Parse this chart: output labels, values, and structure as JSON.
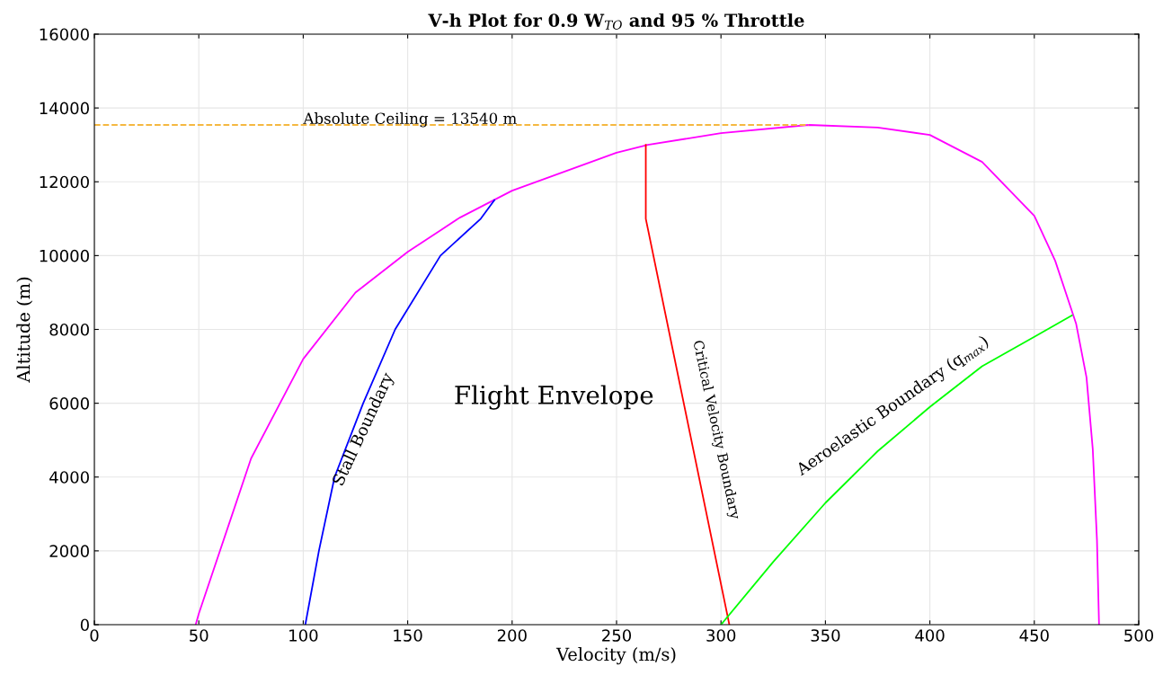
{
  "chart_data": {
    "type": "line",
    "title": "V-h Plot for 0.9 W$_{TO}$ and 95 % Throttle",
    "xlabel": "Velocity (m/s)",
    "ylabel": "Altitude (m)",
    "xlim": [
      0,
      500
    ],
    "xticks": [
      0,
      50,
      100,
      150,
      200,
      250,
      300,
      350,
      400,
      450,
      500
    ],
    "ylim": [
      0,
      16000
    ],
    "yticks": [
      0,
      2000,
      4000,
      6000,
      8000,
      10000,
      12000,
      14000,
      16000
    ],
    "grid": true,
    "line_style": "solid",
    "series": [
      {
        "color": "#ff00ff",
        "x": [
          48.5,
          50,
          75,
          100,
          125,
          150,
          175,
          200,
          250,
          265,
          300,
          342,
          375,
          400,
          425,
          450,
          460,
          470,
          475,
          478,
          480,
          481
        ],
        "values": [
          0,
          300,
          4500,
          7200,
          9000,
          10100,
          11030,
          11760,
          12790,
          13000,
          13320,
          13540,
          13470,
          13270,
          12540,
          11080,
          9860,
          8160,
          6700,
          4750,
          2300,
          0
        ]
      },
      {
        "color": "#0000ff",
        "x": [
          101,
          107.5,
          115,
          128.7,
          144,
          165.7,
          185,
          191.5
        ],
        "values": [
          0,
          2000,
          4000,
          6000,
          8000,
          10000,
          11000,
          11500
        ]
      },
      {
        "color": "#ff0000",
        "x": [
          304,
          264,
          264
        ],
        "values": [
          0,
          11000,
          13000
        ]
      },
      {
        "color": "#00ff00",
        "x": [
          300,
          325,
          350,
          375,
          400,
          425,
          450,
          468
        ],
        "values": [
          0,
          1700,
          3300,
          4700,
          5900,
          7000,
          7800,
          8380
        ]
      },
      {
        "color": "#f5b841",
        "x": [
          0,
          342
        ],
        "values": [
          13540,
          13540
        ],
        "line_style": "dashed"
      }
    ],
    "annotations": [
      "Absolute Ceiling = 13540 m",
      "Stall Boundary",
      "Flight Envelope",
      "Critical Velocity Boundary",
      "Aeroelastic Boundary (q$_{max}$)"
    ]
  }
}
